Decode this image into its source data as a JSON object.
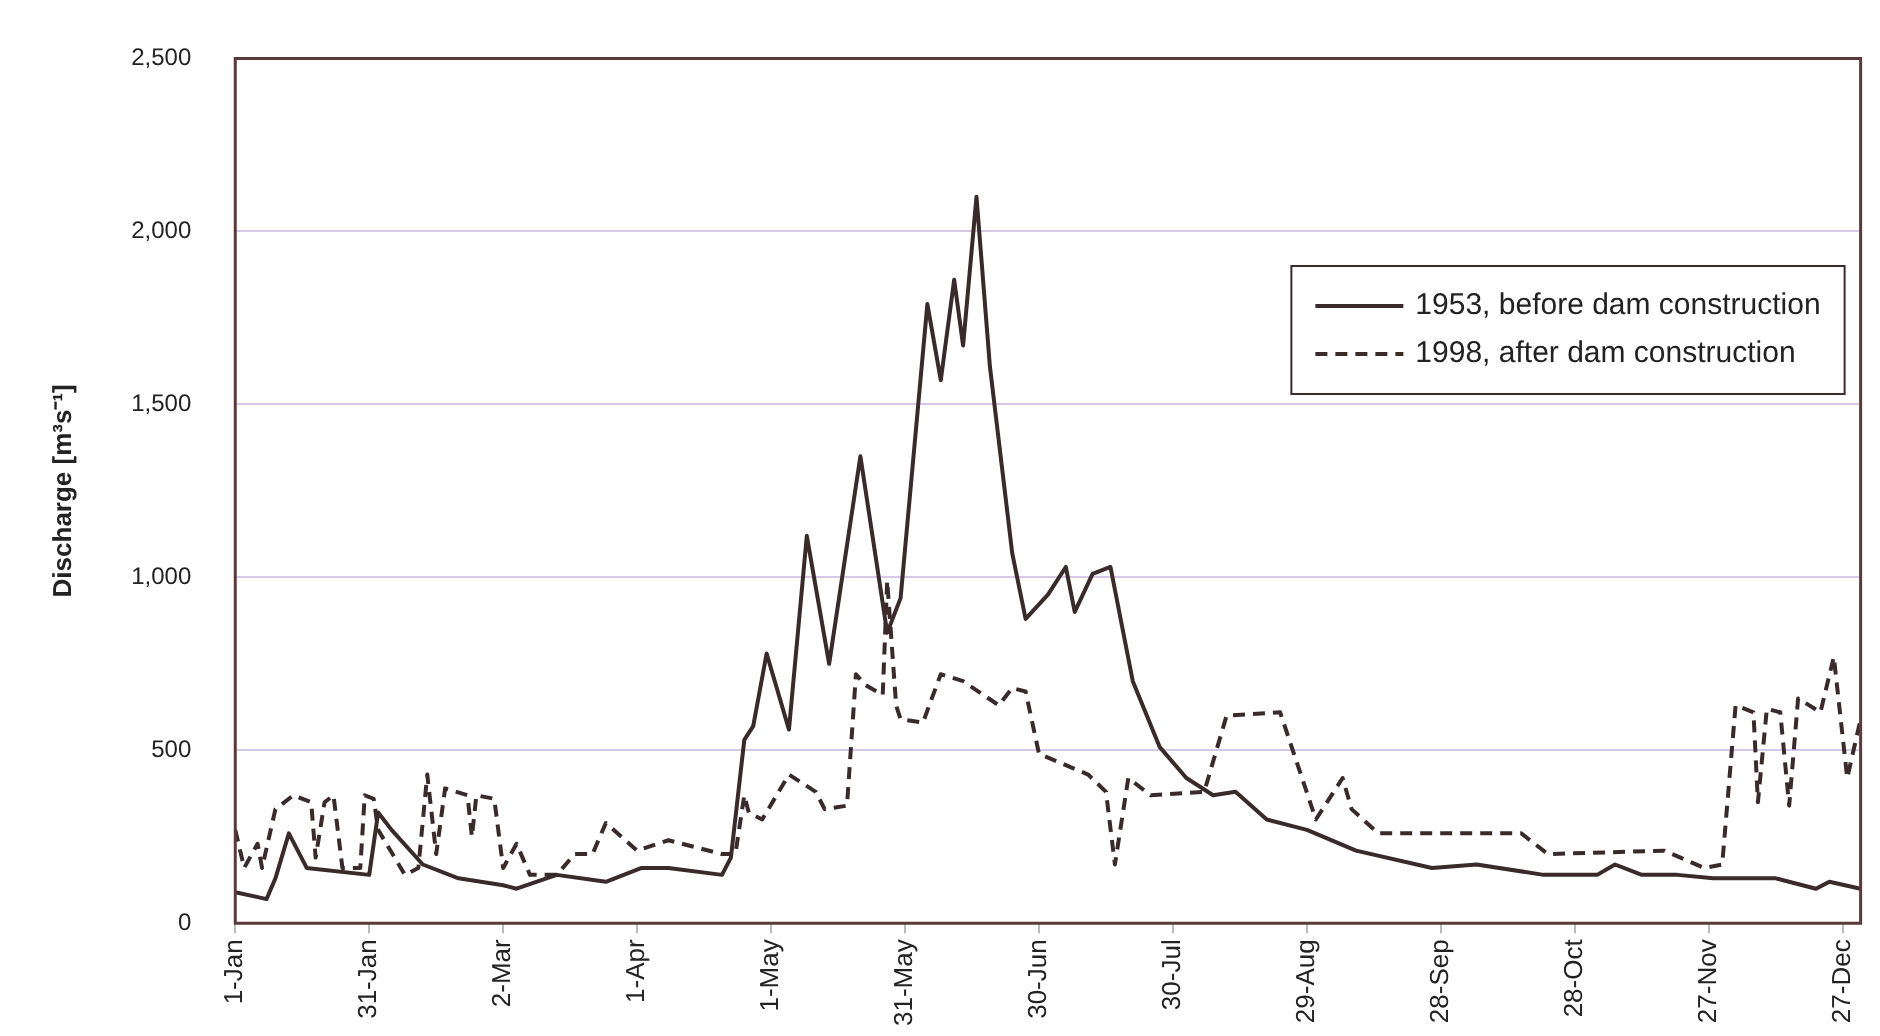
{
  "chart_data": {
    "type": "line",
    "ylabel": "Discharge [m³s⁻¹]",
    "xlim": [
      "--01-01",
      "--12-31"
    ],
    "xticks": [
      {
        "value": "--01-01",
        "label": "1-Jan"
      },
      {
        "value": "--01-31",
        "label": "31-Jan"
      },
      {
        "value": "--03-02",
        "label": "2-Mar"
      },
      {
        "value": "--04-01",
        "label": "1-Apr"
      },
      {
        "value": "--05-01",
        "label": "1-May"
      },
      {
        "value": "--05-31",
        "label": "31-May"
      },
      {
        "value": "--06-30",
        "label": "30-Jun"
      },
      {
        "value": "--07-30",
        "label": "30-Jul"
      },
      {
        "value": "--08-29",
        "label": "29-Aug"
      },
      {
        "value": "--09-28",
        "label": "28-Sep"
      },
      {
        "value": "--10-28",
        "label": "28-Oct"
      },
      {
        "value": "--11-27",
        "label": "27-Nov"
      },
      {
        "value": "--12-27",
        "label": "27-Dec"
      }
    ],
    "ylim": [
      0,
      2500
    ],
    "yticks": [
      0,
      {
        "value": 500,
        "label": "500"
      },
      {
        "value": 1000,
        "label": "1,000"
      },
      {
        "value": 1500,
        "label": "1,500"
      },
      {
        "value": 2000,
        "label": "2,000"
      },
      {
        "value": 2500,
        "label": "2,500"
      }
    ],
    "grid": "y",
    "legend": "top right",
    "marker": "none",
    "series": [
      {
        "name": "1953, before dam construction",
        "color": "#3a2a2a",
        "line_style": "solid",
        "x": [
          "--01-01",
          "--01-08",
          "--01-10",
          "--01-13",
          "--01-17",
          "--01-31",
          "--02-02",
          "--02-05",
          "--02-12",
          "--02-20",
          "--03-02",
          "--03-05",
          "--03-14",
          "--03-25",
          "--04-02",
          "--04-08",
          "--04-20",
          "--04-22",
          "--04-25",
          "--04-27",
          "--04-30",
          "--05-05",
          "--05-09",
          "--05-14",
          "--05-21",
          "--05-27",
          "--05-30",
          "--06-05",
          "--06-08",
          "--06-11",
          "--06-13",
          "--06-16",
          "--06-19",
          "--06-24",
          "--06-27",
          "--07-02",
          "--07-06",
          "--07-08",
          "--07-12",
          "--07-16",
          "--07-21",
          "--07-27",
          "--08-02",
          "--08-08",
          "--08-13",
          "--08-20",
          "--08-29",
          "--09-09",
          "--09-26",
          "--10-06",
          "--10-21",
          "--11-02",
          "--11-06",
          "--11-12",
          "--11-20",
          "--11-28",
          "--12-12",
          "--12-21",
          "--12-24",
          "--12-31"
        ],
        "values": [
          90,
          70,
          130,
          260,
          160,
          140,
          320,
          270,
          170,
          130,
          110,
          100,
          140,
          120,
          160,
          160,
          140,
          190,
          530,
          570,
          780,
          560,
          1120,
          750,
          1350,
          840,
          940,
          1790,
          1570,
          1860,
          1670,
          2100,
          1610,
          1070,
          880,
          950,
          1030,
          900,
          1010,
          1030,
          700,
          510,
          420,
          370,
          380,
          300,
          270,
          210,
          160,
          170,
          140,
          140,
          170,
          140,
          140,
          130,
          130,
          100,
          120,
          100
        ]
      },
      {
        "name": "1998, after dam construction",
        "color": "#3a2a2a",
        "line_style": "dashed",
        "x": [
          "--01-01",
          "--01-03",
          "--01-06",
          "--01-07",
          "--01-10",
          "--01-14",
          "--01-18",
          "--01-19",
          "--01-21",
          "--01-23",
          "--01-25",
          "--01-29",
          "--01-30",
          "--02-01",
          "--02-02",
          "--02-08",
          "--02-11",
          "--02-13",
          "--02-15",
          "--02-17",
          "--02-22",
          "--02-23",
          "--02-24",
          "--02-28",
          "--03-02",
          "--03-05",
          "--03-08",
          "--03-14",
          "--03-18",
          "--03-22",
          "--03-25",
          "--04-01",
          "--04-08",
          "--04-20",
          "--04-23",
          "--04-25",
          "--04-26",
          "--04-29",
          "--05-05",
          "--05-11",
          "--05-13",
          "--05-18",
          "--05-20",
          "--05-22",
          "--05-26",
          "--05-27",
          "--05-29",
          "--05-30",
          "--06-04",
          "--06-08",
          "--06-13",
          "--06-21",
          "--06-24",
          "--06-27",
          "--06-30",
          "--07-11",
          "--07-15",
          "--07-17",
          "--07-20",
          "--07-25",
          "--08-06",
          "--08-11",
          "--08-23",
          "--08-31",
          "--09-06",
          "--09-08",
          "--09-14",
          "--10-16",
          "--10-22",
          "--11-17",
          "--11-26",
          "--11-30",
          "--12-03",
          "--12-07",
          "--12-08",
          "--12-10",
          "--12-13",
          "--12-15",
          "--12-17",
          "--12-22",
          "--12-25",
          "--12-28",
          "--12-31"
        ],
        "values": [
          270,
          160,
          230,
          160,
          330,
          370,
          350,
          190,
          350,
          370,
          160,
          160,
          370,
          360,
          270,
          140,
          160,
          430,
          200,
          390,
          370,
          250,
          370,
          360,
          160,
          230,
          140,
          140,
          200,
          200,
          290,
          210,
          240,
          200,
          200,
          370,
          320,
          300,
          430,
          380,
          330,
          340,
          720,
          690,
          660,
          990,
          630,
          590,
          580,
          720,
          700,
          630,
          680,
          670,
          490,
          430,
          380,
          170,
          420,
          370,
          380,
          600,
          610,
          300,
          420,
          330,
          260,
          260,
          200,
          210,
          160,
          170,
          630,
          610,
          350,
          620,
          610,
          340,
          650,
          610,
          770,
          420,
          590
        ]
      }
    ]
  }
}
